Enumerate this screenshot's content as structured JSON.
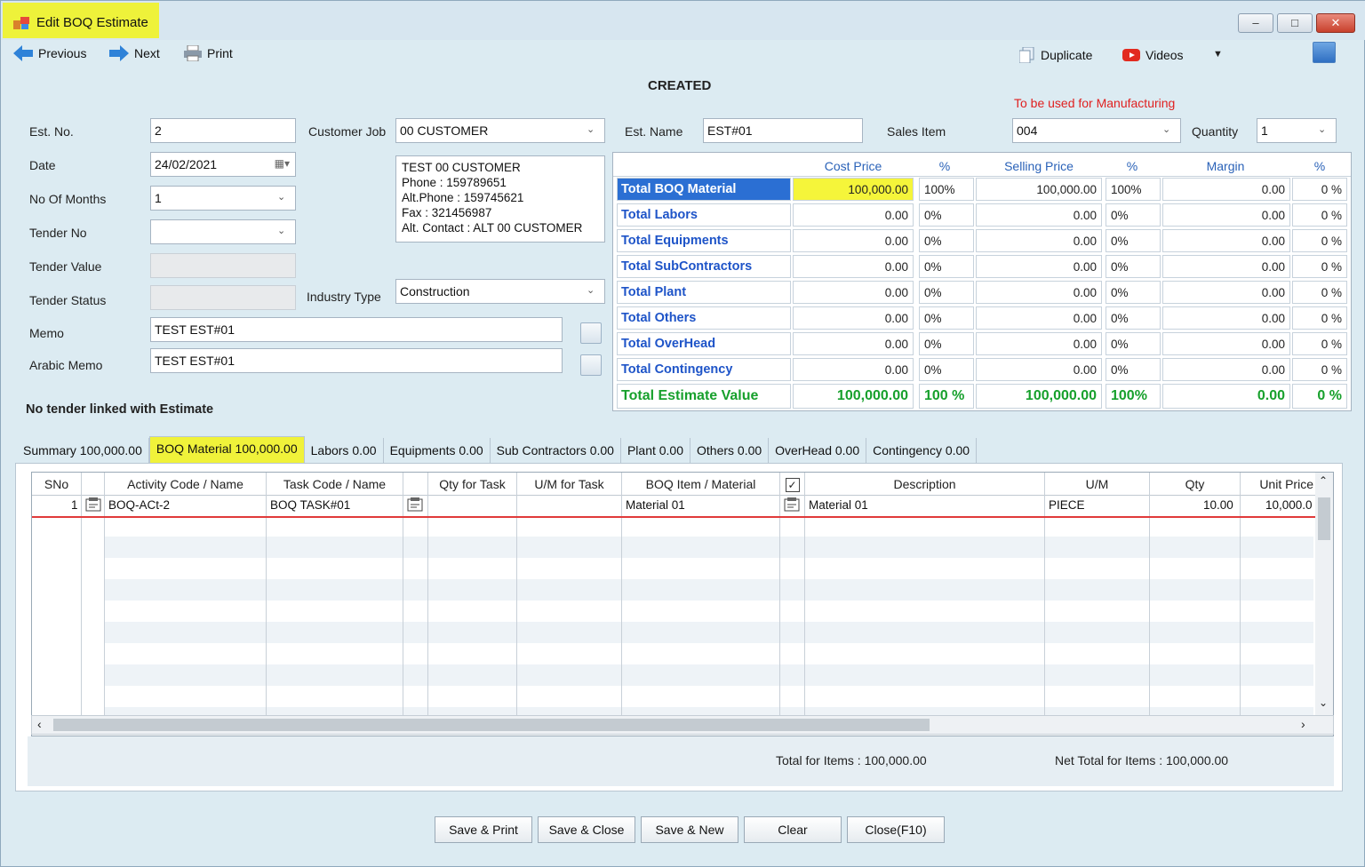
{
  "window": {
    "title": "Edit BOQ Estimate",
    "status": "CREATED"
  },
  "toolbar": {
    "previous": "Previous",
    "next": "Next",
    "print": "Print",
    "duplicate": "Duplicate",
    "videos": "Videos"
  },
  "form": {
    "est_no_label": "Est. No.",
    "est_no": "2",
    "date_label": "Date",
    "date": "24/02/2021",
    "months_label": "No Of Months",
    "months": "1",
    "tender_no_label": "Tender No",
    "tender_no": "",
    "tender_value_label": "Tender Value",
    "tender_status_label": "Tender Status",
    "memo_label": "Memo",
    "memo": "TEST EST#01",
    "arabic_memo_label": "Arabic Memo",
    "arabic_memo": "TEST EST#01",
    "customer_job_label": "Customer Job",
    "customer_job": "00 CUSTOMER",
    "customer_info": [
      "TEST 00 CUSTOMER",
      "Phone : 159789651",
      "Alt.Phone : 159745621",
      "Fax : 321456987",
      "Alt. Contact : ALT 00 CUSTOMER"
    ],
    "industry_type_label": "Industry Type",
    "industry_type": "Construction",
    "est_name_label": "Est. Name",
    "est_name": "EST#01",
    "sales_item_label": "Sales Item",
    "sales_item": "004",
    "quantity_label": "Quantity",
    "quantity": "1",
    "manufacturing_note": "To be used for Manufacturing",
    "no_tender": "No tender linked with Estimate"
  },
  "totals": {
    "headers": [
      "Cost Price",
      "%",
      "Selling Price",
      "%",
      "Margin",
      "%"
    ],
    "rows": [
      {
        "name": "Total BOQ Material",
        "cost": "100,000.00",
        "cost_pct": "100%",
        "sell": "100,000.00",
        "sell_pct": "100%",
        "margin": "0.00",
        "margin_pct": "0 %"
      },
      {
        "name": "Total Labors",
        "cost": "0.00",
        "cost_pct": "0%",
        "sell": "0.00",
        "sell_pct": "0%",
        "margin": "0.00",
        "margin_pct": "0 %"
      },
      {
        "name": "Total Equipments",
        "cost": "0.00",
        "cost_pct": "0%",
        "sell": "0.00",
        "sell_pct": "0%",
        "margin": "0.00",
        "margin_pct": "0 %"
      },
      {
        "name": "Total SubContractors",
        "cost": "0.00",
        "cost_pct": "0%",
        "sell": "0.00",
        "sell_pct": "0%",
        "margin": "0.00",
        "margin_pct": "0 %"
      },
      {
        "name": "Total Plant",
        "cost": "0.00",
        "cost_pct": "0%",
        "sell": "0.00",
        "sell_pct": "0%",
        "margin": "0.00",
        "margin_pct": "0 %"
      },
      {
        "name": "Total Others",
        "cost": "0.00",
        "cost_pct": "0%",
        "sell": "0.00",
        "sell_pct": "0%",
        "margin": "0.00",
        "margin_pct": "0 %"
      },
      {
        "name": "Total OverHead",
        "cost": "0.00",
        "cost_pct": "0%",
        "sell": "0.00",
        "sell_pct": "0%",
        "margin": "0.00",
        "margin_pct": "0 %"
      },
      {
        "name": "Total Contingency",
        "cost": "0.00",
        "cost_pct": "0%",
        "sell": "0.00",
        "sell_pct": "0%",
        "margin": "0.00",
        "margin_pct": "0 %"
      }
    ],
    "grand": {
      "name": "Total Estimate Value",
      "cost": "100,000.00",
      "cost_pct": "100 %",
      "sell": "100,000.00",
      "sell_pct": "100%",
      "margin": "0.00",
      "margin_pct": "0 %"
    }
  },
  "tabs": [
    "Summary 100,000.00",
    "BOQ Material  100,000.00",
    "Labors 0.00",
    "Equipments 0.00",
    "Sub Contractors 0.00",
    "Plant  0.00",
    "Others  0.00",
    "OverHead 0.00",
    "Contingency 0.00"
  ],
  "grid": {
    "headers": [
      "SNo",
      "Activity Code / Name",
      "Task Code / Name",
      "Qty for Task",
      "U/M for Task",
      "BOQ Item / Material",
      "Description",
      "U/M",
      "Qty",
      "Unit Price"
    ],
    "row": {
      "sno": "1",
      "activity": "BOQ-ACt-2",
      "task": "BOQ TASK#01",
      "material": "Material 01",
      "description": "Material 01",
      "um": "PIECE",
      "qty": "10.00",
      "unit_price": "10,000.0"
    }
  },
  "footer": {
    "total_items": "Total for Items : 100,000.00",
    "net_total": "Net Total for Items  : 100,000.00"
  },
  "buttons": {
    "save_print": "Save & Print",
    "save_close": "Save & Close",
    "save_new": "Save & New",
    "clear": "Clear",
    "close": "Close(F10)"
  }
}
